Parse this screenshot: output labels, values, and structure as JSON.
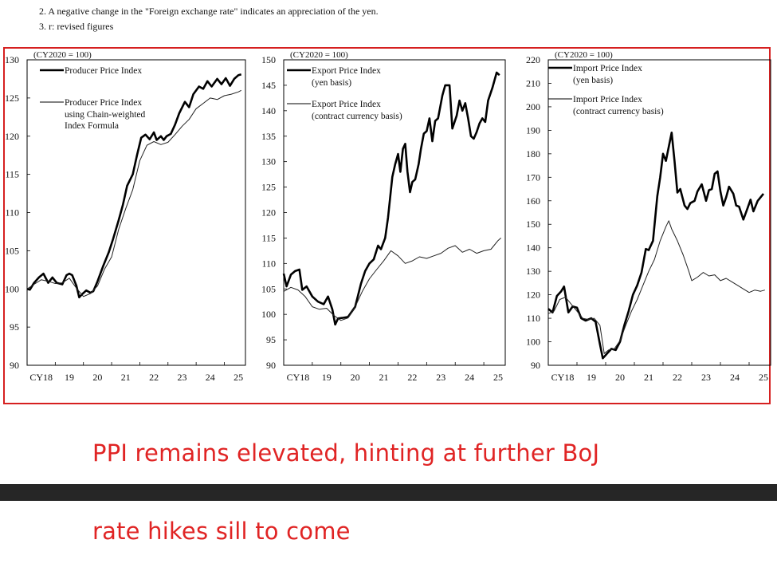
{
  "notes": {
    "note1": "2. A negative change in the \"Foreign exchange rate\" indicates an appreciation of the yen.",
    "note2": "3. r: revised figures"
  },
  "captions": {
    "line1": "PPI remains elevated, hinting at further BoJ",
    "line2": "rate hikes sill to come"
  },
  "colors": {
    "frame": "#d62020",
    "caption": "#e02424",
    "series_main": "#000000",
    "series_secondary": "#222222",
    "dark_bar": "#262626"
  },
  "chart_data": [
    {
      "type": "line",
      "unit_label": "(CY2020 = 100)",
      "ylim": [
        90,
        130
      ],
      "yticks": [
        90,
        95,
        100,
        105,
        110,
        115,
        120,
        125,
        130
      ],
      "xlim": [
        2018,
        2025.75
      ],
      "xticks": [
        2018,
        2019,
        2020,
        2021,
        2022,
        2023,
        2024,
        2025
      ],
      "xtick_labels": [
        "CY18",
        "19",
        "20",
        "21",
        "22",
        "23",
        "24",
        "25"
      ],
      "legend": [
        "Producer Price Index",
        "Producer Price Index using Chain-weighted Index Formula"
      ],
      "series": [
        {
          "name": "Producer Price Index",
          "weight": "thick",
          "x": [
            2018.0,
            2018.1,
            2018.25,
            2018.42,
            2018.58,
            2018.75,
            2018.9,
            2019.05,
            2019.25,
            2019.4,
            2019.5,
            2019.6,
            2019.75,
            2019.85,
            2019.95,
            2020.1,
            2020.25,
            2020.35,
            2020.5,
            2020.7,
            2020.9,
            2021.05,
            2021.25,
            2021.4,
            2021.55,
            2021.75,
            2021.9,
            2022.05,
            2022.2,
            2022.35,
            2022.5,
            2022.6,
            2022.75,
            2022.85,
            2022.95,
            2023.1,
            2023.25,
            2023.4,
            2023.6,
            2023.75,
            2023.9,
            2024.1,
            2024.25,
            2024.4,
            2024.55,
            2024.75,
            2024.9,
            2025.05,
            2025.2,
            2025.35,
            2025.5,
            2025.6
          ],
          "y": [
            100,
            99.9,
            100.8,
            101.5,
            102.0,
            100.8,
            101.5,
            100.8,
            100.6,
            101.8,
            102.0,
            101.8,
            100.4,
            98.9,
            99.3,
            99.8,
            99.5,
            99.7,
            101.0,
            103.0,
            104.8,
            106.5,
            109.0,
            111.0,
            113.5,
            115.0,
            117.5,
            119.8,
            120.2,
            119.6,
            120.5,
            119.5,
            120.0,
            119.5,
            120.0,
            120.3,
            121.5,
            123.0,
            124.5,
            123.8,
            125.5,
            126.5,
            126.2,
            127.2,
            126.5,
            127.5,
            126.8,
            127.6,
            126.6,
            127.5,
            128.0,
            128.1
          ]
        },
        {
          "name": "Producer Price Index using Chain-weighted Index Formula",
          "weight": "thin",
          "x": [
            2018.0,
            2018.25,
            2018.5,
            2018.75,
            2019.0,
            2019.25,
            2019.5,
            2019.75,
            2020.0,
            2020.25,
            2020.5,
            2020.75,
            2021.0,
            2021.25,
            2021.5,
            2021.75,
            2022.0,
            2022.25,
            2022.5,
            2022.75,
            2023.0,
            2023.25,
            2023.5,
            2023.75,
            2024.0,
            2024.25,
            2024.5,
            2024.75,
            2025.0,
            2025.25,
            2025.5,
            2025.6
          ],
          "y": [
            100,
            100.6,
            101.2,
            101.0,
            100.7,
            100.8,
            101.4,
            100.1,
            99.0,
            99.4,
            100.4,
            102.6,
            104.2,
            107.8,
            110.5,
            113.0,
            116.8,
            118.8,
            119.3,
            118.9,
            119.2,
            120.2,
            121.3,
            122.2,
            123.6,
            124.3,
            125.0,
            124.8,
            125.3,
            125.5,
            125.8,
            126.0
          ]
        }
      ]
    },
    {
      "type": "line",
      "unit_label": "(CY2020 = 100)",
      "ylim": [
        90,
        150
      ],
      "yticks": [
        90,
        95,
        100,
        105,
        110,
        115,
        120,
        125,
        130,
        135,
        140,
        145,
        150
      ],
      "xlim": [
        2018,
        2025.75
      ],
      "xticks": [
        2018,
        2019,
        2020,
        2021,
        2022,
        2023,
        2024,
        2025
      ],
      "xtick_labels": [
        "CY18",
        "19",
        "20",
        "21",
        "22",
        "23",
        "24",
        "25"
      ],
      "legend": [
        "Export Price Index (yen basis)",
        "Export Price Index (contract currency basis)"
      ],
      "series": [
        {
          "name": "Export Price Index (yen basis)",
          "weight": "thick",
          "x": [
            2018.0,
            2018.1,
            2018.25,
            2018.4,
            2018.55,
            2018.65,
            2018.8,
            2019.0,
            2019.2,
            2019.4,
            2019.55,
            2019.7,
            2019.8,
            2019.9,
            2020.05,
            2020.25,
            2020.5,
            2020.7,
            2020.85,
            2021.0,
            2021.15,
            2021.3,
            2021.4,
            2021.55,
            2021.65,
            2021.8,
            2021.9,
            2022.0,
            2022.08,
            2022.17,
            2022.25,
            2022.33,
            2022.42,
            2022.5,
            2022.6,
            2022.72,
            2022.8,
            2022.9,
            2023.0,
            2023.1,
            2023.2,
            2023.3,
            2023.4,
            2023.55,
            2023.65,
            2023.8,
            2023.9,
            2024.05,
            2024.15,
            2024.25,
            2024.35,
            2024.45,
            2024.55,
            2024.65,
            2024.75,
            2024.85,
            2024.95,
            2025.05,
            2025.15,
            2025.3,
            2025.45,
            2025.55
          ],
          "y": [
            108,
            105.5,
            107.8,
            108.5,
            108.8,
            104.8,
            105.5,
            103.5,
            102.5,
            102.0,
            103.5,
            101.0,
            98.0,
            99.2,
            99.3,
            99.5,
            101.5,
            106.0,
            108.5,
            110.0,
            110.8,
            113.5,
            112.8,
            115.0,
            119.0,
            127.0,
            129.5,
            131.5,
            128.0,
            132.5,
            133.5,
            128.0,
            124.0,
            126.0,
            126.5,
            129.5,
            132.5,
            135.5,
            136.0,
            138.5,
            134.0,
            138.0,
            138.5,
            143.0,
            145.0,
            145.0,
            136.5,
            139.0,
            142.0,
            140.0,
            141.5,
            138.5,
            135.0,
            134.5,
            135.8,
            137.5,
            138.5,
            137.8,
            142.0,
            144.5,
            147.5,
            147.0
          ]
        },
        {
          "name": "Export Price Index (contract currency basis)",
          "weight": "thin",
          "x": [
            2018.0,
            2018.25,
            2018.5,
            2018.75,
            2019.0,
            2019.25,
            2019.5,
            2019.75,
            2020.0,
            2020.25,
            2020.5,
            2020.75,
            2021.0,
            2021.25,
            2021.5,
            2021.75,
            2022.0,
            2022.25,
            2022.5,
            2022.75,
            2023.0,
            2023.25,
            2023.5,
            2023.75,
            2024.0,
            2024.25,
            2024.5,
            2024.75,
            2025.0,
            2025.25,
            2025.5,
            2025.6
          ],
          "y": [
            104.5,
            105.3,
            104.8,
            103.5,
            101.5,
            101.0,
            101.2,
            99.8,
            98.8,
            99.3,
            101.5,
            104.5,
            107.0,
            108.8,
            110.5,
            112.5,
            111.5,
            110.0,
            110.5,
            111.3,
            111.0,
            111.5,
            112.0,
            113.0,
            113.5,
            112.2,
            112.8,
            112.0,
            112.5,
            112.8,
            114.5,
            115.0
          ]
        }
      ]
    },
    {
      "type": "line",
      "unit_label": "(CY2020 = 100)",
      "ylim": [
        90,
        220
      ],
      "yticks": [
        90,
        100,
        110,
        120,
        130,
        140,
        150,
        160,
        170,
        180,
        190,
        200,
        210,
        220
      ],
      "xlim": [
        2018,
        2025.75
      ],
      "xticks": [
        2018,
        2019,
        2020,
        2021,
        2022,
        2023,
        2024,
        2025
      ],
      "xtick_labels": [
        "CY18",
        "19",
        "20",
        "21",
        "22",
        "23",
        "24",
        "25"
      ],
      "legend": [
        "Import Price Index (yen basis)",
        "Import Price Index (contract currency basis)"
      ],
      "series": [
        {
          "name": "Import Price Index (yen basis)",
          "weight": "thick",
          "x": [
            2018.0,
            2018.15,
            2018.3,
            2018.45,
            2018.55,
            2018.7,
            2018.85,
            2019.0,
            2019.15,
            2019.3,
            2019.5,
            2019.65,
            2019.8,
            2019.9,
            2020.05,
            2020.2,
            2020.35,
            2020.5,
            2020.65,
            2020.8,
            2020.95,
            2021.1,
            2021.25,
            2021.4,
            2021.5,
            2021.65,
            2021.8,
            2021.9,
            2022.0,
            2022.1,
            2022.2,
            2022.3,
            2022.4,
            2022.5,
            2022.6,
            2022.75,
            2022.85,
            2022.95,
            2023.1,
            2023.2,
            2023.35,
            2023.5,
            2023.6,
            2023.7,
            2023.8,
            2023.9,
            2024.0,
            2024.1,
            2024.2,
            2024.3,
            2024.45,
            2024.55,
            2024.65,
            2024.8,
            2024.95,
            2025.05,
            2025.15,
            2025.3,
            2025.5
          ],
          "y": [
            114,
            112.5,
            119.5,
            121.5,
            123.5,
            112.5,
            115.0,
            114.5,
            110.0,
            109.0,
            110.0,
            108.5,
            99.0,
            93.0,
            95.0,
            97.0,
            96.5,
            100.0,
            107.0,
            113.0,
            120.0,
            124.0,
            129.5,
            139.5,
            139.0,
            143.0,
            162.0,
            170.0,
            180.0,
            177.0,
            183.0,
            189.0,
            177.0,
            163.5,
            165.0,
            158.0,
            156.5,
            159.0,
            160.0,
            164.0,
            167.0,
            160.0,
            164.5,
            165.0,
            171.5,
            172.5,
            164.0,
            158.0,
            161.5,
            166.0,
            163.0,
            158.0,
            157.5,
            152.0,
            157.0,
            160.5,
            155.5,
            160.0,
            163.0
          ]
        },
        {
          "name": "Import Price Index (contract currency basis)",
          "weight": "thin",
          "x": [
            2018.0,
            2018.2,
            2018.4,
            2018.6,
            2018.8,
            2019.0,
            2019.2,
            2019.4,
            2019.6,
            2019.8,
            2019.95,
            2020.1,
            2020.3,
            2020.5,
            2020.7,
            2020.9,
            2021.1,
            2021.3,
            2021.5,
            2021.7,
            2021.9,
            2022.1,
            2022.2,
            2022.3,
            2022.5,
            2022.7,
            2022.9,
            2023.0,
            2023.2,
            2023.4,
            2023.6,
            2023.8,
            2024.0,
            2024.2,
            2024.4,
            2024.6,
            2024.8,
            2025.0,
            2025.2,
            2025.4,
            2025.55
          ],
          "y": [
            112.0,
            113.0,
            118.0,
            119.0,
            116.0,
            113.0,
            110.0,
            109.5,
            110.0,
            107.0,
            95.0,
            96.5,
            97.0,
            100.5,
            107.0,
            113.0,
            118.0,
            124.0,
            130.0,
            135.0,
            143.0,
            149.0,
            151.5,
            148.0,
            143.0,
            137.0,
            130.0,
            126.0,
            127.5,
            129.5,
            128.0,
            128.5,
            126.0,
            127.0,
            125.5,
            124.0,
            122.5,
            121.0,
            122.0,
            121.5,
            122.0
          ]
        }
      ]
    }
  ]
}
